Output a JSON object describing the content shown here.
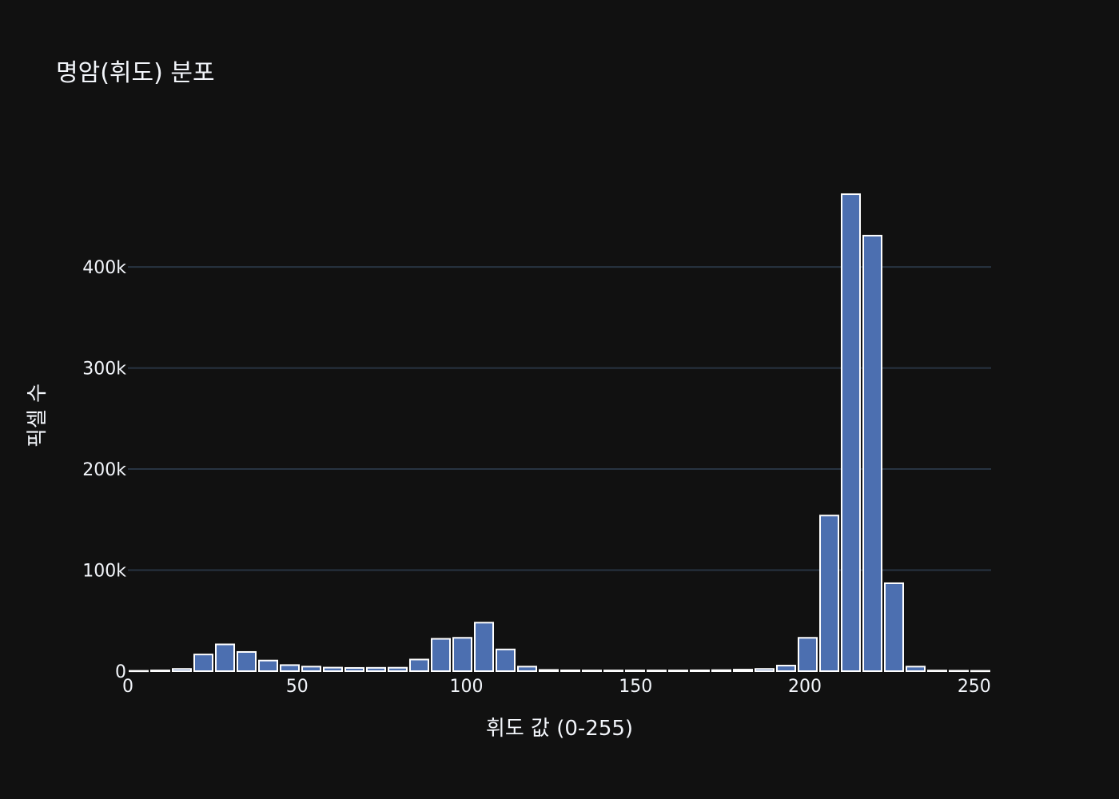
{
  "chart_data": {
    "type": "bar",
    "title": "명암(휘도) 분포",
    "xlabel": "휘도 값 (0-255)",
    "ylabel": "픽셀 수",
    "xlim": [
      0,
      255
    ],
    "ylim": [
      0,
      510000
    ],
    "bin_width": 6.375,
    "x_ticks": [
      0,
      50,
      100,
      150,
      200,
      250
    ],
    "x_tick_labels": [
      "0",
      "50",
      "100",
      "150",
      "200",
      "250"
    ],
    "y_ticks": [
      0,
      100000,
      200000,
      300000,
      400000
    ],
    "y_tick_labels": [
      "0",
      "100k",
      "200k",
      "300k",
      "400k"
    ],
    "grid": true,
    "bar_color": "#4c6fb0",
    "bar_edge_color": "#ffffff",
    "x": [
      3.19,
      9.56,
      15.94,
      22.31,
      28.69,
      35.06,
      41.44,
      47.81,
      54.19,
      60.56,
      66.94,
      73.31,
      79.69,
      86.06,
      92.44,
      98.81,
      105.19,
      111.56,
      117.94,
      124.31,
      130.69,
      137.06,
      143.44,
      149.81,
      156.19,
      162.56,
      168.94,
      175.31,
      181.69,
      188.06,
      194.44,
      200.81,
      207.19,
      213.56,
      219.94,
      226.31,
      232.69,
      239.06,
      245.44,
      251.81
    ],
    "values": [
      300,
      700,
      2200,
      16500,
      26500,
      19000,
      10500,
      6000,
      4500,
      3500,
      3200,
      3300,
      3400,
      11500,
      32000,
      33000,
      48000,
      21500,
      4500,
      1200,
      800,
      700,
      700,
      700,
      700,
      700,
      800,
      1000,
      1500,
      2200,
      5500,
      33000,
      154000,
      472000,
      431000,
      87000,
      4500,
      600,
      400,
      300
    ]
  },
  "colors": {
    "background": "#111111",
    "grid": "#283442",
    "text": "#f2f5fa"
  }
}
